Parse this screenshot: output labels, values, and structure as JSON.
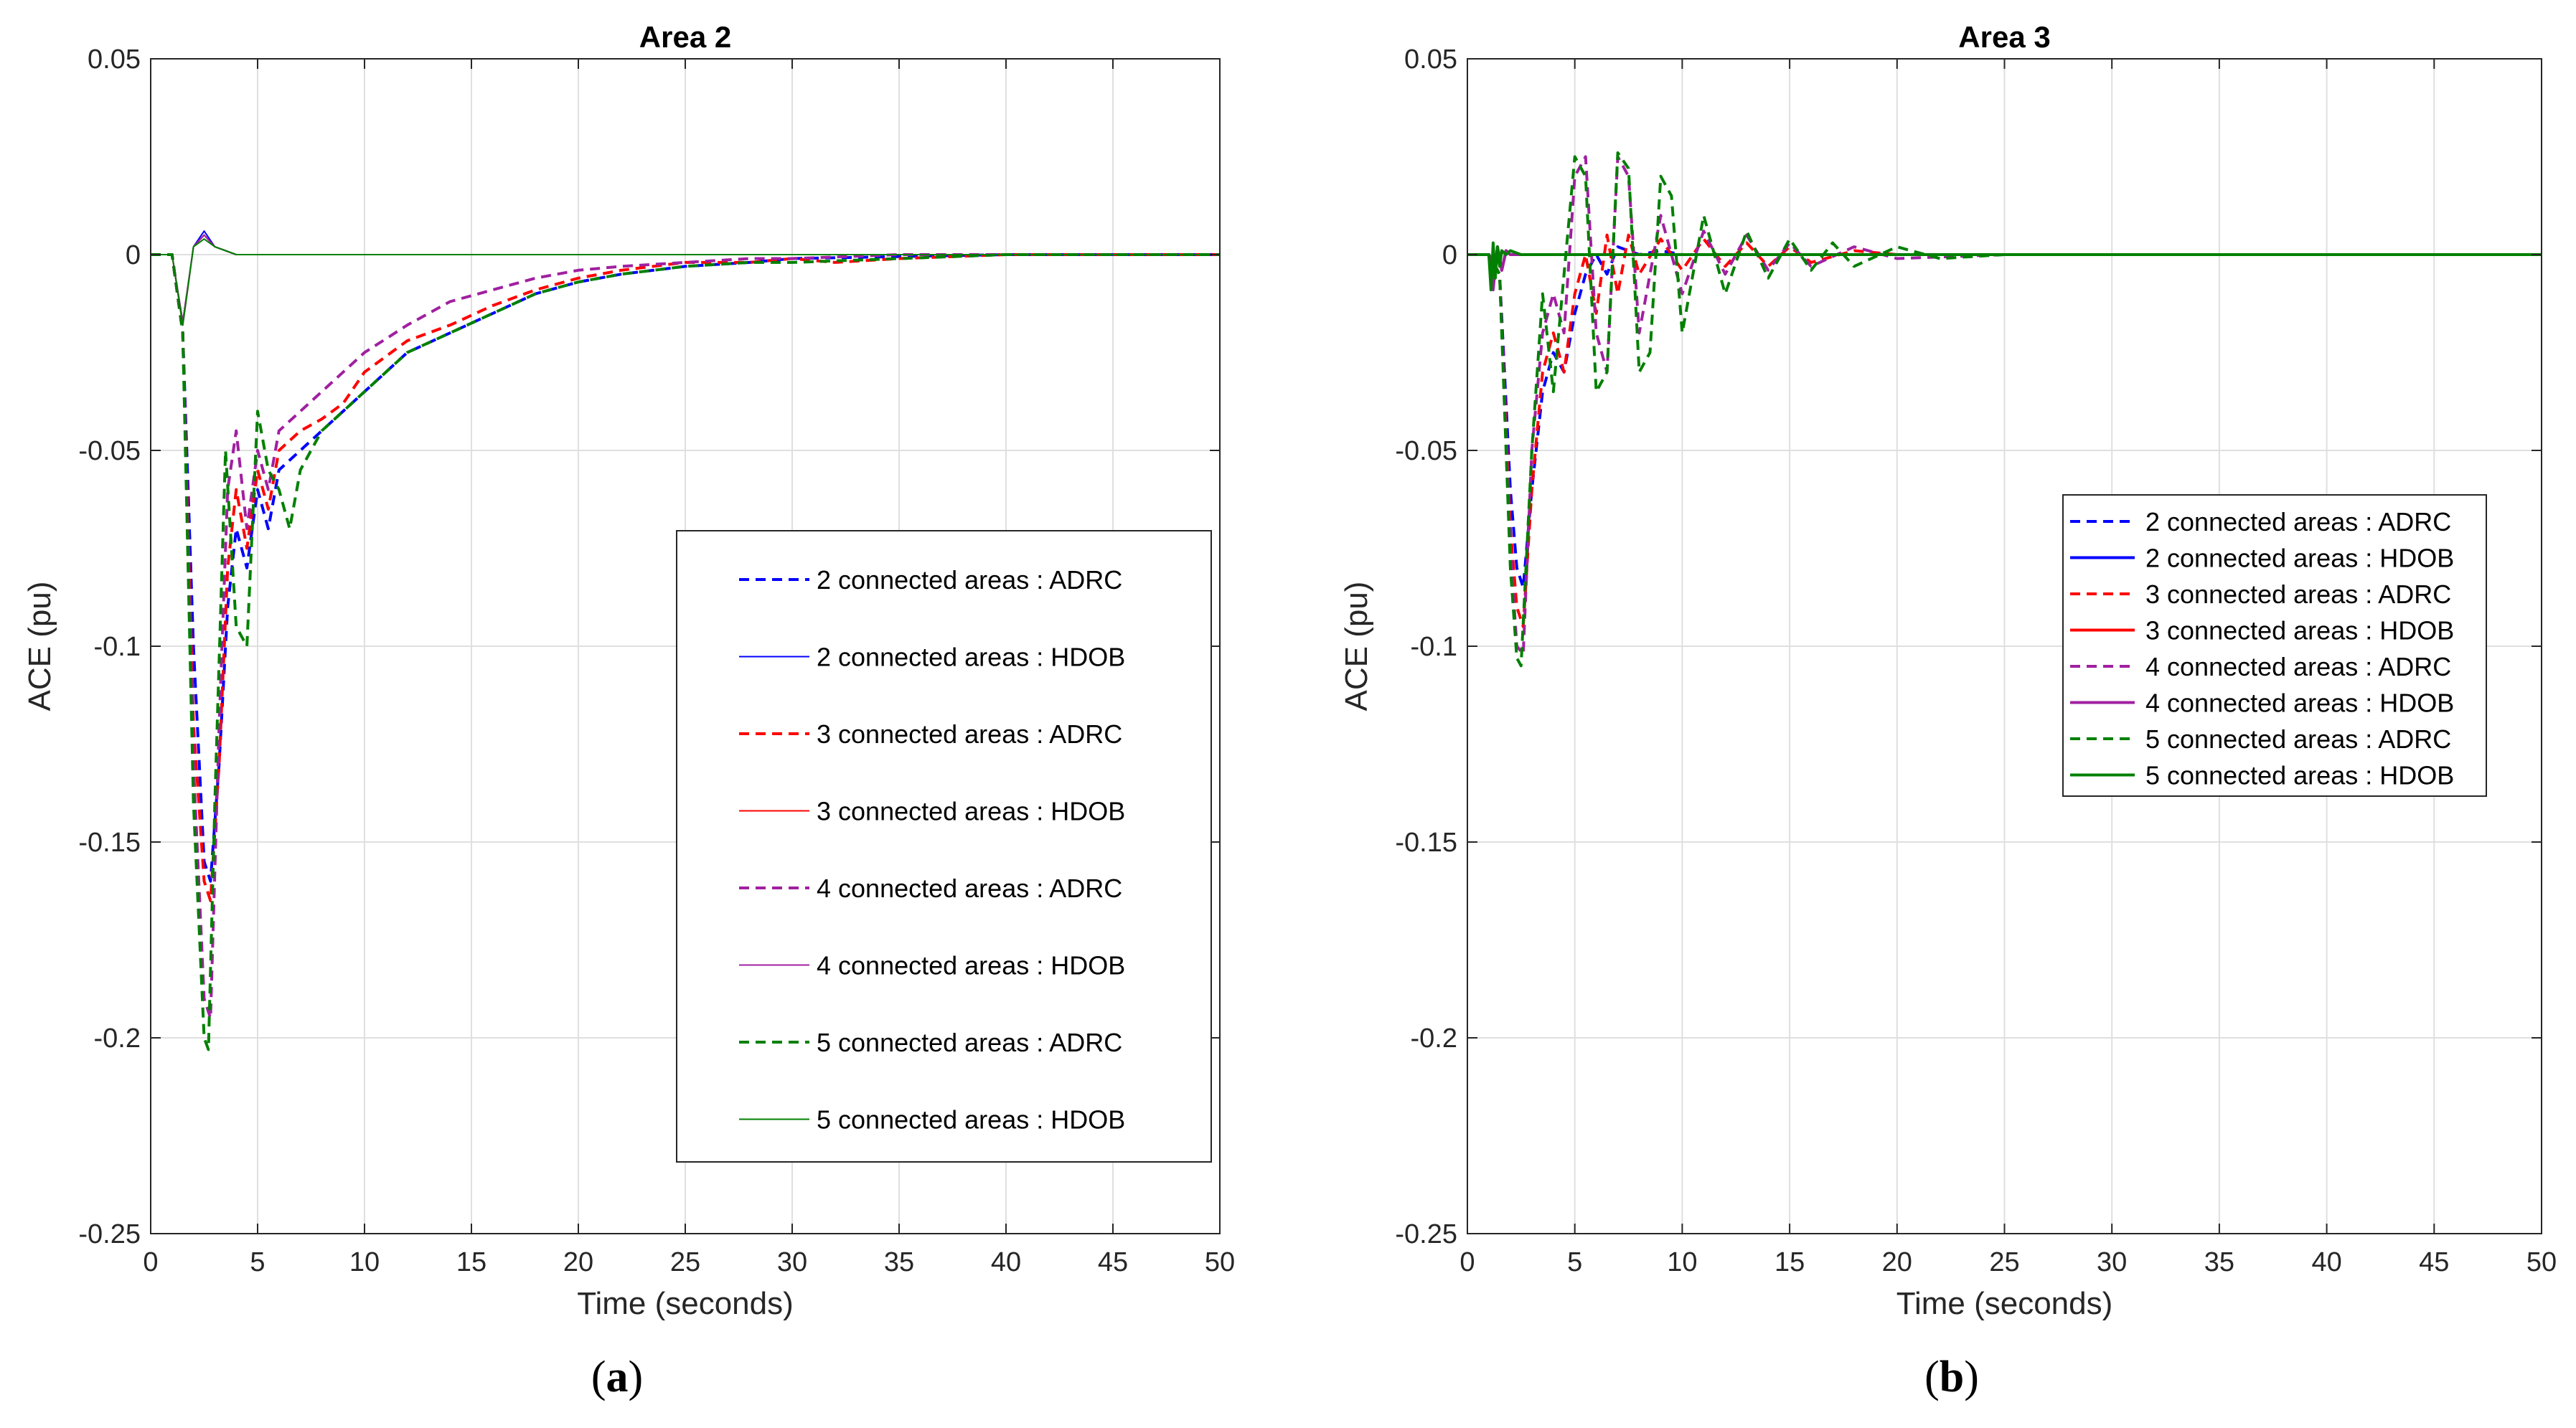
{
  "figure": {
    "panel_labels": [
      "a",
      "b"
    ]
  },
  "chart_data": [
    {
      "type": "line",
      "title": "Area 2",
      "xlabel": "Time (seconds)",
      "ylabel": "ACE (pu)",
      "xlim": [
        0,
        50
      ],
      "ylim": [
        -0.25,
        0.05
      ],
      "xticks": [
        0,
        5,
        10,
        15,
        20,
        25,
        30,
        35,
        40,
        45,
        50
      ],
      "yticks": [
        0.05,
        0,
        -0.05,
        -0.1,
        -0.15,
        -0.2,
        -0.25
      ],
      "xtick_labels": [
        "0",
        "5",
        "10",
        "15",
        "20",
        "25",
        "30",
        "35",
        "40",
        "45",
        "50"
      ],
      "ytick_labels": [
        "0.05",
        "0",
        "-0.05",
        "-0.1",
        "-0.15",
        "-0.2",
        "-0.25"
      ],
      "grid": true,
      "legend_position": "center-right",
      "series": [
        {
          "name": "2 connected areas : ADRC",
          "color": "#0000ff",
          "style": "dashed",
          "x": [
            0,
            1,
            1.5,
            2,
            2.5,
            2.8,
            3.2,
            3.6,
            4,
            4.5,
            5,
            5.5,
            6,
            7,
            8,
            9,
            10,
            12,
            14,
            16,
            18,
            20,
            22,
            25,
            28,
            30,
            35,
            40,
            45,
            50
          ],
          "y": [
            0,
            0,
            -0.02,
            -0.1,
            -0.155,
            -0.16,
            -0.13,
            -0.09,
            -0.07,
            -0.08,
            -0.06,
            -0.07,
            -0.055,
            -0.05,
            -0.045,
            -0.04,
            -0.035,
            -0.025,
            -0.02,
            -0.015,
            -0.01,
            -0.007,
            -0.005,
            -0.003,
            -0.002,
            -0.001,
            -0.0005,
            0,
            0,
            0
          ]
        },
        {
          "name": "2 connected areas : HDOB",
          "color": "#0000ff",
          "style": "solid",
          "x": [
            0,
            1,
            1.5,
            2,
            2.5,
            3,
            3.5,
            4,
            5,
            50
          ],
          "y": [
            0,
            0,
            -0.018,
            0.002,
            0.006,
            0.002,
            0.001,
            0,
            0,
            0
          ]
        },
        {
          "name": "3 connected areas : ADRC",
          "color": "#ff0000",
          "style": "dashed",
          "x": [
            0,
            1,
            1.5,
            2,
            2.5,
            2.8,
            3.2,
            3.6,
            4,
            4.5,
            5,
            5.5,
            6,
            7,
            8,
            9,
            10,
            12,
            14,
            16,
            18,
            20,
            22,
            25,
            28,
            30,
            32,
            35,
            40,
            45,
            50
          ],
          "y": [
            0,
            0,
            -0.02,
            -0.12,
            -0.16,
            -0.165,
            -0.13,
            -0.08,
            -0.06,
            -0.075,
            -0.055,
            -0.065,
            -0.05,
            -0.045,
            -0.042,
            -0.038,
            -0.03,
            -0.022,
            -0.018,
            -0.013,
            -0.009,
            -0.006,
            -0.004,
            -0.002,
            -0.002,
            -0.001,
            -0.002,
            -0.001,
            0,
            0,
            0
          ]
        },
        {
          "name": "3 connected areas : HDOB",
          "color": "#ff0000",
          "style": "solid",
          "x": [
            0,
            1,
            1.5,
            2,
            2.5,
            3,
            3.5,
            4,
            5,
            50
          ],
          "y": [
            0,
            0,
            -0.018,
            0.002,
            0.005,
            0.002,
            0.001,
            0,
            0,
            0
          ]
        },
        {
          "name": "4 connected areas : ADRC",
          "color": "#a020a0",
          "style": "dashed",
          "x": [
            0,
            1,
            1.5,
            2,
            2.5,
            2.8,
            3.2,
            3.6,
            4,
            4.5,
            5,
            5.5,
            6,
            7,
            8,
            9,
            10,
            12,
            14,
            16,
            18,
            20,
            22,
            25,
            28,
            30,
            35,
            40,
            45,
            50
          ],
          "y": [
            0,
            0,
            -0.02,
            -0.13,
            -0.19,
            -0.195,
            -0.12,
            -0.06,
            -0.045,
            -0.07,
            -0.05,
            -0.06,
            -0.045,
            -0.04,
            -0.035,
            -0.03,
            -0.025,
            -0.018,
            -0.012,
            -0.009,
            -0.006,
            -0.004,
            -0.003,
            -0.002,
            -0.001,
            -0.001,
            0,
            0,
            0,
            0
          ]
        },
        {
          "name": "4 connected areas : HDOB",
          "color": "#a020a0",
          "style": "solid",
          "x": [
            0,
            1,
            1.5,
            2,
            2.5,
            3,
            3.5,
            4,
            5,
            50
          ],
          "y": [
            0,
            0,
            -0.017,
            0.002,
            0.005,
            0.002,
            0.001,
            0,
            0,
            0
          ]
        },
        {
          "name": "5 connected areas : ADRC",
          "color": "#008000",
          "style": "dashed",
          "x": [
            0,
            1,
            1.5,
            2,
            2.5,
            2.7,
            3,
            3.5,
            4,
            4.5,
            5,
            5.5,
            6,
            6.5,
            7,
            8,
            9,
            10,
            12,
            14,
            16,
            18,
            20,
            22,
            25,
            28,
            30,
            35,
            40,
            45,
            50
          ],
          "y": [
            0,
            0,
            -0.02,
            -0.14,
            -0.2,
            -0.203,
            -0.14,
            -0.05,
            -0.095,
            -0.1,
            -0.04,
            -0.055,
            -0.06,
            -0.07,
            -0.055,
            -0.045,
            -0.04,
            -0.035,
            -0.025,
            -0.02,
            -0.015,
            -0.01,
            -0.007,
            -0.005,
            -0.003,
            -0.002,
            -0.002,
            -0.001,
            0,
            0,
            0
          ]
        },
        {
          "name": "5 connected areas : HDOB",
          "color": "#008000",
          "style": "solid",
          "x": [
            0,
            1,
            1.5,
            2,
            2.5,
            3,
            3.5,
            4,
            5,
            50
          ],
          "y": [
            0,
            0,
            -0.018,
            0.002,
            0.004,
            0.002,
            0.001,
            0,
            0,
            0
          ]
        }
      ]
    },
    {
      "type": "line",
      "title": "Area 3",
      "xlabel": "Time (seconds)",
      "ylabel": "ACE (pu)",
      "xlim": [
        0,
        50
      ],
      "ylim": [
        -0.25,
        0.05
      ],
      "xticks": [
        0,
        5,
        10,
        15,
        20,
        25,
        30,
        35,
        40,
        45,
        50
      ],
      "yticks": [
        0.05,
        0,
        -0.05,
        -0.1,
        -0.15,
        -0.2,
        -0.25
      ],
      "xtick_labels": [
        "0",
        "5",
        "10",
        "15",
        "20",
        "25",
        "30",
        "35",
        "40",
        "45",
        "50"
      ],
      "ytick_labels": [
        "0.05",
        "0",
        "-0.05",
        "-0.1",
        "-0.15",
        "-0.2",
        "-0.25"
      ],
      "grid": true,
      "legend_position": "center-right",
      "series": [
        {
          "name": "2 connected areas : ADRC",
          "color": "#0000ff",
          "style": "dashed",
          "x": [
            0,
            1,
            1.5,
            2,
            2.3,
            2.6,
            3,
            3.5,
            4,
            4.5,
            5,
            5.5,
            6,
            6.5,
            7,
            8,
            9,
            10,
            12,
            14,
            16,
            18,
            20,
            25,
            30,
            50
          ],
          "y": [
            0,
            0,
            -0.005,
            -0.06,
            -0.08,
            -0.085,
            -0.06,
            -0.035,
            -0.025,
            -0.03,
            -0.015,
            -0.005,
            0.0,
            -0.005,
            0.002,
            0.0,
            0.001,
            0.0,
            0.0,
            0.0,
            0.0,
            0.0,
            0.0,
            0.0,
            0.0,
            0.0
          ]
        },
        {
          "name": "2 connected areas : HDOB",
          "color": "#0000ff",
          "style": "solid",
          "x": [
            0,
            1,
            1.2,
            1.4,
            1.6,
            1.8,
            2,
            2.5,
            3,
            50
          ],
          "y": [
            0,
            0,
            -0.008,
            0.002,
            -0.004,
            0.001,
            0,
            0,
            0,
            0
          ]
        },
        {
          "name": "3 connected areas : ADRC",
          "color": "#ff0000",
          "style": "dashed",
          "x": [
            0,
            1,
            1.5,
            2,
            2.3,
            2.6,
            3,
            3.5,
            4,
            4.5,
            5,
            5.5,
            6,
            6.5,
            7,
            7.5,
            8,
            9,
            10,
            11,
            12,
            13,
            14,
            15,
            16,
            18,
            20,
            25,
            30,
            50
          ],
          "y": [
            0,
            0,
            -0.005,
            -0.07,
            -0.09,
            -0.095,
            -0.06,
            -0.03,
            -0.02,
            -0.03,
            -0.01,
            0.0,
            -0.015,
            0.005,
            -0.01,
            0.005,
            -0.005,
            0.004,
            -0.004,
            0.004,
            -0.003,
            0.003,
            -0.003,
            0.002,
            -0.002,
            0.001,
            0.0,
            0.0,
            0.0,
            0.0
          ]
        },
        {
          "name": "3 connected areas : HDOB",
          "color": "#ff0000",
          "style": "solid",
          "x": [
            0,
            1,
            1.2,
            1.4,
            1.6,
            1.8,
            2,
            2.5,
            3,
            50
          ],
          "y": [
            0,
            0,
            -0.008,
            0.002,
            -0.004,
            0.001,
            0,
            0,
            0,
            0
          ]
        },
        {
          "name": "4 connected areas : ADRC",
          "color": "#a020a0",
          "style": "dashed",
          "x": [
            0,
            1,
            1.5,
            2,
            2.3,
            2.6,
            3,
            3.5,
            4,
            4.5,
            5,
            5.5,
            6,
            6.5,
            7,
            7.5,
            8,
            9,
            10,
            11,
            12,
            13,
            14,
            15,
            16,
            18,
            20,
            25,
            30,
            50
          ],
          "y": [
            0,
            0,
            -0.005,
            -0.075,
            -0.1,
            -0.102,
            -0.05,
            -0.02,
            -0.01,
            -0.02,
            0.02,
            0.025,
            -0.02,
            -0.03,
            0.025,
            0.02,
            -0.02,
            0.01,
            -0.01,
            0.006,
            -0.005,
            0.005,
            -0.004,
            0.003,
            -0.003,
            0.002,
            -0.001,
            0.0,
            0.0,
            0.0
          ]
        },
        {
          "name": "4 connected areas : HDOB",
          "color": "#a020a0",
          "style": "solid",
          "x": [
            0,
            1,
            1.2,
            1.4,
            1.6,
            1.8,
            2,
            2.5,
            3,
            50
          ],
          "y": [
            0,
            0,
            -0.009,
            0.002,
            -0.004,
            0.001,
            0,
            0,
            0,
            0
          ]
        },
        {
          "name": "5 connected areas : ADRC",
          "color": "#008000",
          "style": "dashed",
          "x": [
            0,
            1,
            1.5,
            2,
            2.3,
            2.5,
            3,
            3.5,
            4,
            4.5,
            5,
            5.5,
            6,
            6.5,
            7,
            7.5,
            8,
            8.5,
            9,
            9.5,
            10,
            11,
            12,
            13,
            14,
            15,
            16,
            17,
            18,
            20,
            22,
            25,
            30,
            50
          ],
          "y": [
            0,
            0,
            -0.005,
            -0.08,
            -0.103,
            -0.105,
            -0.05,
            -0.01,
            -0.035,
            -0.005,
            0.025,
            0.02,
            -0.035,
            -0.03,
            0.026,
            0.022,
            -0.03,
            -0.025,
            0.02,
            0.015,
            -0.02,
            0.01,
            -0.01,
            0.006,
            -0.006,
            0.004,
            -0.004,
            0.003,
            -0.003,
            0.002,
            -0.001,
            0.0,
            0.0,
            0.0
          ]
        },
        {
          "name": "5 connected areas : HDOB",
          "color": "#008000",
          "style": "solid",
          "x": [
            0,
            1,
            1.1,
            1.2,
            1.3,
            1.4,
            1.5,
            1.6,
            1.8,
            2,
            2.5,
            3,
            50
          ],
          "y": [
            0,
            0,
            -0.009,
            0.003,
            -0.006,
            0.002,
            -0.003,
            0.001,
            0,
            0.001,
            0,
            0,
            0
          ]
        }
      ]
    }
  ]
}
